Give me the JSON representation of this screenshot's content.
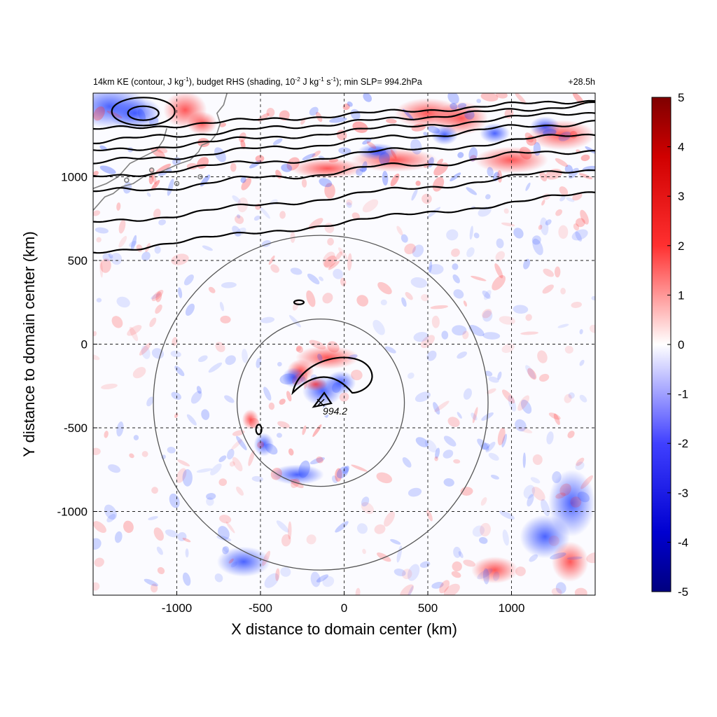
{
  "title": {
    "main_pre": "14km KE (contour, J kg",
    "main_sup1": "-1",
    "main_mid1": "), budget RHS (shading, 10",
    "main_sup2": "-2",
    "main_mid2": " J kg",
    "main_sup3": "-1",
    "main_mid3": " s",
    "main_sup4": "-1",
    "main_post": "); min SLP= 994.2hPa",
    "time": "+28.5h"
  },
  "chart_data": {
    "type": "heatmap",
    "xlabel": "X distance to domain center (km)",
    "ylabel": "Y distance to domain center (km)",
    "xlim": [
      -1500,
      1500
    ],
    "ylim": [
      -1500,
      1500
    ],
    "x_ticks": [
      -1000,
      -500,
      0,
      500,
      1000
    ],
    "y_ticks": [
      -1000,
      -500,
      0,
      500,
      1000
    ],
    "x_tick_labels": [
      "-1000",
      "-500",
      "0",
      "500",
      "1000"
    ],
    "y_tick_labels": [
      "-1000",
      "-500",
      "0",
      "500",
      "1000"
    ],
    "grid": "dashed",
    "colorbar": {
      "min": -5,
      "max": 5,
      "ticks": [
        5,
        4,
        3,
        2,
        1,
        0,
        -1,
        -2,
        -3,
        -4,
        -5
      ],
      "tick_labels": [
        "5",
        "4",
        "3",
        "2",
        "1",
        "0",
        "-1",
        "-2",
        "-3",
        "-4",
        "-5"
      ],
      "colors": [
        "#00007f",
        "#0000ff",
        "#ffffff",
        "#ff0000",
        "#7f0000"
      ]
    },
    "storm_center": {
      "x": -140,
      "y": -350,
      "label": "994.2"
    },
    "range_circles_km": [
      500,
      1000
    ],
    "colors": {
      "positive": "#e02020",
      "negative": "#1030e0",
      "contour": "#000000",
      "coast": "#808080",
      "circle": "#555555"
    }
  }
}
